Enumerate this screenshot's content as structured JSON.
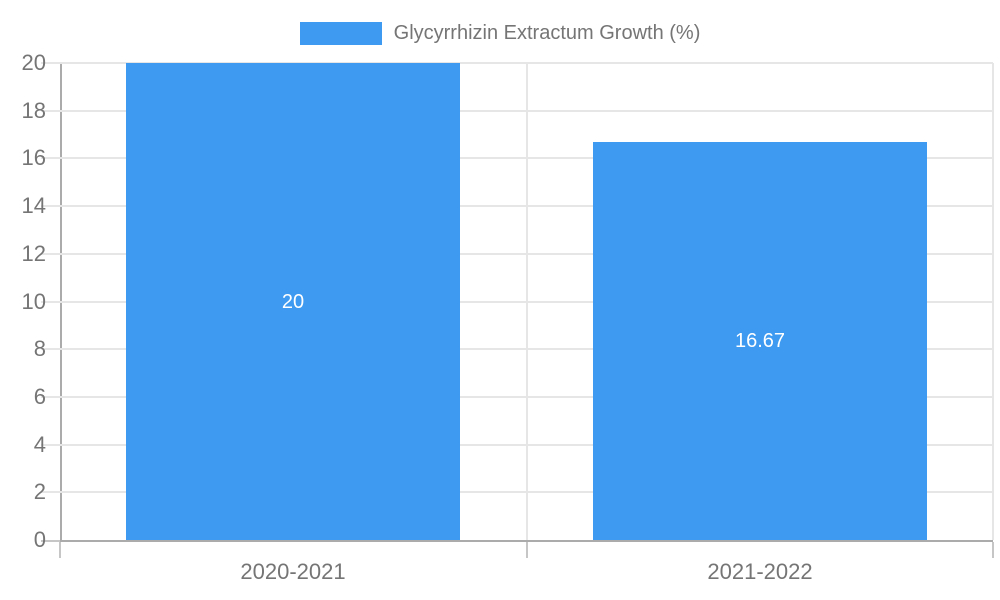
{
  "chart_data": {
    "type": "bar",
    "title": "Glycyrrhizin Extractum Growth (%)",
    "categories": [
      "2020-2021",
      "2021-2022"
    ],
    "values": [
      20,
      16.67
    ],
    "value_labels": [
      "20",
      "16.67"
    ],
    "yticks": [
      0,
      2,
      4,
      6,
      8,
      10,
      12,
      14,
      16,
      18,
      20
    ],
    "ylim": [
      0,
      20
    ],
    "xlabel": "",
    "ylabel": "",
    "legend_position": "top-center",
    "grid": true,
    "bar_width_fraction": 0.716,
    "colors": {
      "series": "#3D9AF0",
      "gridline": "#E6E6E6",
      "axis_line": "#ABABAB",
      "tick": "#C6C6C6",
      "axis_label": "#757575",
      "legend_text": "#757575",
      "value_label": "#FFFFFF",
      "background": "#FFFFFF"
    }
  }
}
